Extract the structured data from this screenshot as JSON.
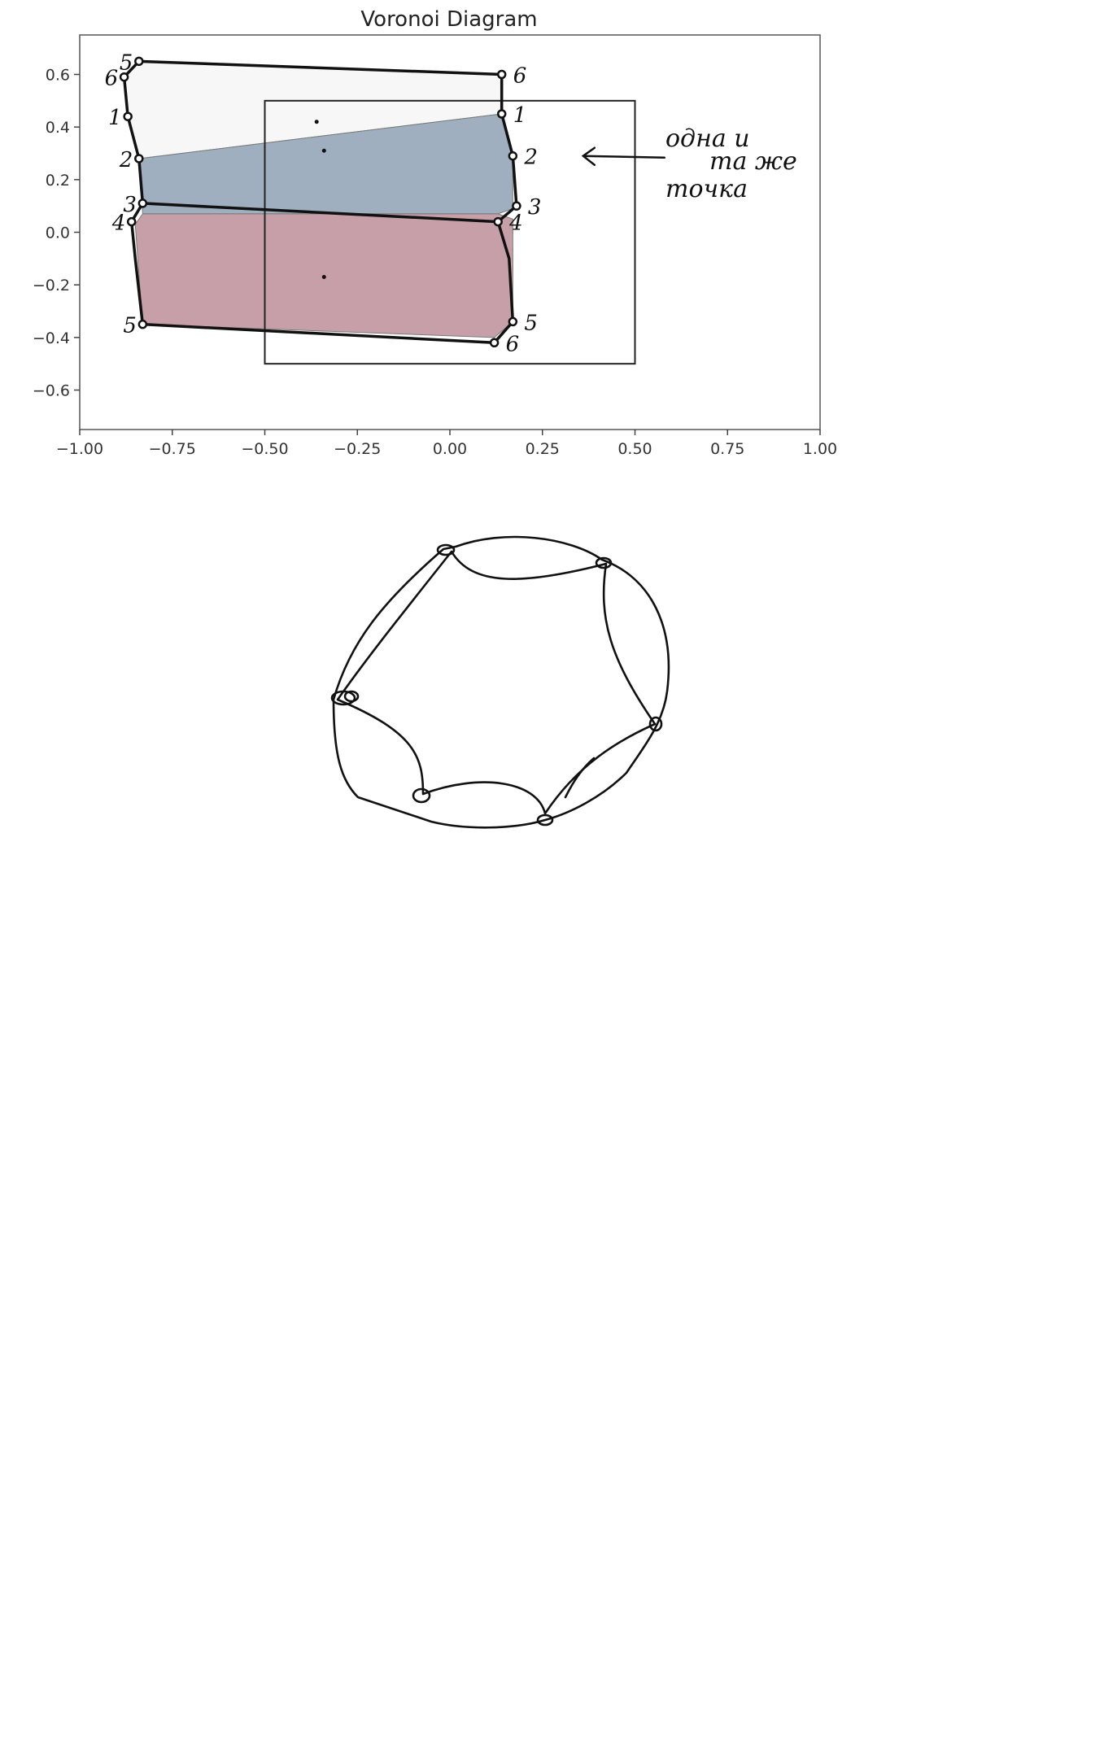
{
  "chart_data": {
    "type": "voronoi",
    "title": "Voronoi Diagram",
    "xlim": [
      -1.0,
      1.0
    ],
    "ylim": [
      -0.75,
      0.75
    ],
    "x_ticks": [
      -1.0,
      -0.75,
      -0.5,
      -0.25,
      0.0,
      0.25,
      0.5,
      0.75,
      1.0
    ],
    "x_tick_labels": [
      "−1.00",
      "−0.75",
      "−0.50",
      "−0.25",
      "0.00",
      "0.25",
      "0.50",
      "0.75",
      "1.00"
    ],
    "y_ticks": [
      0.6,
      0.4,
      0.2,
      0.0,
      -0.2,
      -0.4,
      -0.6
    ],
    "y_tick_labels": [
      "0.6",
      "0.4",
      "0.2",
      "0.0",
      "−0.2",
      "−0.4",
      "−0.6"
    ],
    "grid": false,
    "bounding_box": {
      "x": [
        -0.5,
        0.5
      ],
      "y": [
        -0.5,
        0.5
      ]
    },
    "sites": [
      {
        "x": -0.36,
        "y": 0.42
      },
      {
        "x": -0.34,
        "y": 0.31
      },
      {
        "x": -0.34,
        "y": -0.17
      }
    ],
    "regions": [
      {
        "color": "#f7f7f7",
        "polygon": [
          [
            -0.84,
            0.65
          ],
          [
            0.14,
            0.6
          ],
          [
            0.14,
            0.45
          ],
          [
            -0.84,
            0.28
          ],
          [
            -0.87,
            0.44
          ],
          [
            -0.88,
            0.59
          ]
        ]
      },
      {
        "color": "#9aabbc",
        "polygon": [
          [
            -0.84,
            0.28
          ],
          [
            0.14,
            0.45
          ],
          [
            0.17,
            0.29
          ],
          [
            0.17,
            0.09
          ],
          [
            0.13,
            0.07
          ],
          [
            -0.83,
            0.07
          ]
        ]
      },
      {
        "color": "#c49aa4",
        "polygon": [
          [
            -0.83,
            0.07
          ],
          [
            0.13,
            0.07
          ],
          [
            0.17,
            0.05
          ],
          [
            0.17,
            -0.34
          ],
          [
            0.12,
            -0.4
          ],
          [
            -0.83,
            -0.35
          ],
          [
            -0.85,
            0.03
          ]
        ]
      }
    ],
    "drawn_lines": [
      [
        [
          -0.88,
          0.59
        ],
        [
          -0.84,
          0.65
        ],
        [
          0.14,
          0.6
        ],
        [
          0.14,
          0.45
        ]
      ],
      [
        [
          -0.88,
          0.59
        ],
        [
          -0.87,
          0.44
        ],
        [
          -0.84,
          0.28
        ],
        [
          -0.83,
          0.11
        ],
        [
          0.13,
          0.04
        ]
      ],
      [
        [
          0.14,
          0.45
        ],
        [
          0.17,
          0.29
        ],
        [
          0.18,
          0.1
        ],
        [
          0.13,
          0.04
        ]
      ],
      [
        [
          -0.83,
          0.11
        ],
        [
          -0.86,
          0.04
        ],
        [
          -0.85,
          -0.1
        ],
        [
          -0.83,
          -0.35
        ],
        [
          0.12,
          -0.42
        ],
        [
          0.17,
          -0.34
        ],
        [
          0.16,
          -0.1
        ],
        [
          0.13,
          0.04
        ]
      ]
    ],
    "vertices": [
      {
        "label": "5",
        "x": -0.84,
        "y": 0.65
      },
      {
        "label": "6",
        "x": -0.88,
        "y": 0.59
      },
      {
        "label": "1",
        "x": -0.87,
        "y": 0.44
      },
      {
        "label": "2",
        "x": -0.84,
        "y": 0.28
      },
      {
        "label": "3",
        "x": -0.83,
        "y": 0.11
      },
      {
        "label": "4",
        "x": -0.86,
        "y": 0.04
      },
      {
        "label": "5",
        "x": -0.83,
        "y": -0.35
      },
      {
        "label": "6",
        "x": 0.14,
        "y": 0.6
      },
      {
        "label": "1",
        "x": 0.14,
        "y": 0.45
      },
      {
        "label": "2",
        "x": 0.17,
        "y": 0.29
      },
      {
        "label": "3",
        "x": 0.18,
        "y": 0.1
      },
      {
        "label": "4",
        "x": 0.13,
        "y": 0.04
      },
      {
        "label": "5",
        "x": 0.17,
        "y": -0.34
      },
      {
        "label": "6",
        "x": 0.12,
        "y": -0.42
      }
    ],
    "annotation": {
      "lines": [
        "одна и",
        "та же",
        "точка"
      ],
      "arrow_to": {
        "x": 0.36,
        "y": 0.29
      }
    }
  },
  "sketch": {
    "type": "hand-drawn-loop",
    "nodes": 6
  }
}
